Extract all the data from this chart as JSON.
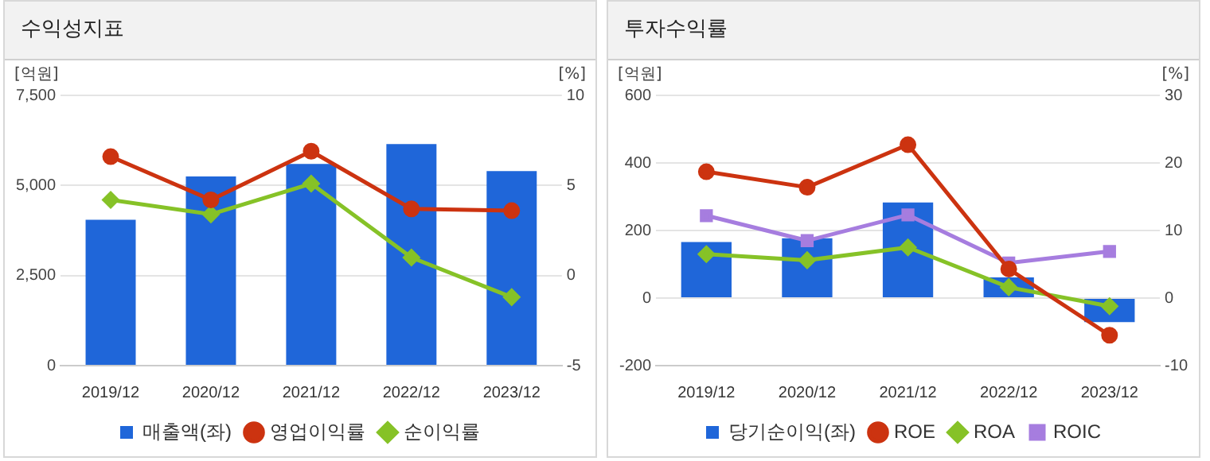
{
  "chart_data": [
    {
      "type": "bar",
      "title": "수익성지표",
      "ylabel": "[억원]",
      "y2label": "[%]",
      "categories": [
        "2019/12",
        "2020/12",
        "2021/12",
        "2022/12",
        "2023/12"
      ],
      "series": [
        {
          "name": "매출액(좌)",
          "color": "#1f66d9",
          "values": [
            4050,
            5250,
            5600,
            6150,
            5400
          ]
        },
        {
          "name": "영업이익률",
          "type": "line",
          "axis": "y2",
          "marker": "circle",
          "color": "#cc3310",
          "values": [
            6.6,
            4.2,
            6.9,
            3.7,
            3.6
          ]
        },
        {
          "name": "순이익률",
          "type": "line",
          "axis": "y2",
          "marker": "diamond",
          "color": "#86c227",
          "values": [
            4.2,
            3.4,
            5.1,
            1.0,
            -1.2
          ]
        }
      ],
      "ylim": [
        0,
        7500
      ],
      "yticks": [
        0,
        {
          "value": 2500,
          "label": "2,500"
        },
        {
          "value": 5000,
          "label": "5,000"
        },
        {
          "value": 7500,
          "label": "7,500"
        }
      ],
      "y2lim": [
        -5,
        10
      ],
      "y2ticks": [
        -5,
        0,
        5,
        10
      ],
      "grid": "y",
      "legend": "bottom"
    },
    {
      "type": "bar",
      "title": "투자수익률",
      "ylabel": "[억원]",
      "y2label": "[%]",
      "categories": [
        "2019/12",
        "2020/12",
        "2021/12",
        "2022/12",
        "2023/12"
      ],
      "series": [
        {
          "name": "당기순이익(좌)",
          "color": "#1f66d9",
          "values": [
            166,
            177,
            283,
            61,
            -71
          ]
        },
        {
          "name": "ROE",
          "type": "line",
          "axis": "y2",
          "marker": "circle",
          "color": "#cc3310",
          "values": [
            18.7,
            16.4,
            22.7,
            4.3,
            -5.5
          ]
        },
        {
          "name": "ROA",
          "type": "line",
          "axis": "y2",
          "marker": "diamond",
          "color": "#86c227",
          "values": [
            6.5,
            5.6,
            7.5,
            1.6,
            -1.2
          ]
        },
        {
          "name": "ROIC",
          "type": "line",
          "axis": "y2",
          "marker": "square",
          "color": "#a67ddf",
          "values": [
            12.2,
            8.5,
            12.3,
            5.2,
            6.9
          ]
        }
      ],
      "ylim": [
        -200,
        600
      ],
      "yticks": [
        -200,
        0,
        200,
        400,
        600
      ],
      "y2lim": [
        -10,
        30
      ],
      "y2ticks": [
        -10,
        0,
        10,
        20,
        30
      ],
      "grid": "y",
      "legend": "bottom"
    }
  ]
}
